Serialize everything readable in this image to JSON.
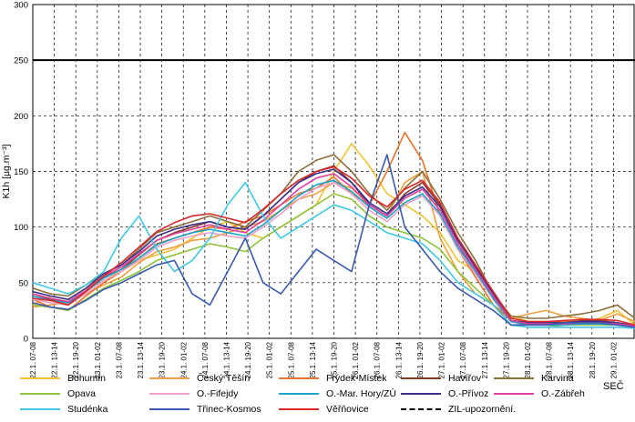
{
  "chart_data": {
    "type": "line",
    "ylabel": "K1h [µg.m⁻³]",
    "ylim": [
      0,
      300
    ],
    "yticks": [
      "0",
      "50",
      "100",
      "150",
      "200",
      "250",
      "300"
    ],
    "threshold": {
      "name": "ZIL-upozornění.",
      "value": 250,
      "color": "#000000"
    },
    "xtick_labels": [
      "22.1. 07-08",
      "22.1. 13-14",
      "22.1. 19-20",
      "23.1. 01-02",
      "23.1. 07-08",
      "23.1. 13-14",
      "23.1. 19-20",
      "24.1. 01-02",
      "24.1. 07-08",
      "24.1. 13-14",
      "24.1. 19-20",
      "25.1. 01-02",
      "25.1. 07-08",
      "25.1. 13-14",
      "25.1. 19-20",
      "26.1. 01-02",
      "26.1. 07-08",
      "26.1. 13-14",
      "26.1. 19-20",
      "27.1. 01-02",
      "27.1. 07-08",
      "27.1. 13-14",
      "27.1. 19-20",
      "28.1. 01-02",
      "28.1. 07-08",
      "28.1. 13-14",
      "28.1. 19-20",
      "29.1. 01-02"
    ],
    "series": [
      {
        "name": "Bohumín",
        "color": "#f2c230",
        "values": [
          30,
          38,
          35,
          45,
          55,
          60,
          70,
          75,
          80,
          90,
          100,
          105,
          95,
          90,
          100,
          110,
          120,
          150,
          175,
          155,
          130,
          120,
          110,
          95,
          70,
          60,
          40,
          20,
          15,
          15,
          12,
          14,
          18,
          25,
          12
        ]
      },
      {
        "name": "Český Těšín",
        "color": "#f0a040",
        "values": [
          28,
          30,
          32,
          40,
          48,
          55,
          68,
          78,
          82,
          88,
          90,
          95,
          100,
          105,
          115,
          125,
          130,
          140,
          135,
          120,
          110,
          140,
          150,
          90,
          60,
          40,
          30,
          18,
          22,
          25,
          20,
          18,
          16,
          22,
          15
        ]
      },
      {
        "name": "Frýdek-Místek",
        "color": "#e8742c",
        "values": [
          35,
          28,
          25,
          38,
          50,
          60,
          72,
          85,
          90,
          95,
          100,
          98,
          105,
          110,
          120,
          130,
          135,
          145,
          130,
          120,
          150,
          185,
          160,
          110,
          80,
          55,
          30,
          16,
          14,
          14,
          15,
          15,
          15,
          14,
          12
        ]
      },
      {
        "name": "Havířov",
        "color": "#8b3a2a",
        "values": [
          40,
          35,
          32,
          42,
          55,
          62,
          75,
          88,
          95,
          100,
          105,
          100,
          98,
          110,
          125,
          140,
          150,
          155,
          140,
          120,
          110,
          130,
          140,
          120,
          85,
          60,
          35,
          16,
          14,
          14,
          14,
          16,
          16,
          14,
          10
        ]
      },
      {
        "name": "Karviná",
        "color": "#8c6e3a",
        "values": [
          45,
          40,
          38,
          48,
          58,
          66,
          80,
          95,
          100,
          105,
          110,
          105,
          100,
          115,
          130,
          150,
          160,
          165,
          150,
          130,
          115,
          135,
          150,
          125,
          95,
          70,
          40,
          20,
          18,
          18,
          20,
          22,
          25,
          30,
          18
        ]
      },
      {
        "name": "Opava",
        "color": "#8fc43a",
        "values": [
          30,
          28,
          25,
          35,
          45,
          52,
          60,
          70,
          75,
          80,
          85,
          82,
          78,
          90,
          100,
          110,
          120,
          130,
          125,
          110,
          100,
          95,
          90,
          80,
          60,
          45,
          30,
          12,
          10,
          10,
          12,
          12,
          12,
          12,
          10
        ]
      },
      {
        "name": "O.-Fifejdy",
        "color": "#f0a0c8",
        "values": [
          35,
          32,
          30,
          40,
          52,
          60,
          70,
          82,
          88,
          92,
          95,
          92,
          90,
          100,
          112,
          125,
          135,
          140,
          130,
          115,
          105,
          120,
          128,
          110,
          80,
          58,
          35,
          15,
          12,
          12,
          12,
          13,
          13,
          12,
          10
        ]
      },
      {
        "name": "O.-Mar. Hory/ZÚ",
        "color": "#1aa3c8",
        "values": [
          38,
          34,
          32,
          42,
          54,
          62,
          72,
          84,
          90,
          95,
          98,
          95,
          92,
          102,
          115,
          128,
          138,
          142,
          132,
          118,
          108,
          122,
          130,
          112,
          82,
          60,
          36,
          15,
          12,
          12,
          12,
          13,
          13,
          12,
          10
        ]
      },
      {
        "name": "O.-Přívoz",
        "color": "#3a2f8c",
        "values": [
          42,
          38,
          35,
          45,
          58,
          66,
          78,
          92,
          98,
          102,
          105,
          100,
          98,
          110,
          125,
          140,
          148,
          152,
          140,
          122,
          112,
          128,
          136,
          118,
          88,
          64,
          40,
          16,
          14,
          14,
          14,
          15,
          15,
          14,
          11
        ]
      },
      {
        "name": "O.-Zábřeh",
        "color": "#e040a0",
        "values": [
          40,
          36,
          33,
          43,
          56,
          64,
          76,
          88,
          94,
          98,
          102,
          98,
          95,
          106,
          120,
          134,
          144,
          148,
          136,
          120,
          110,
          126,
          134,
          115,
          85,
          62,
          38,
          16,
          13,
          13,
          13,
          14,
          14,
          13,
          11
        ]
      },
      {
        "name": "Studénka",
        "color": "#40c8e8",
        "values": [
          50,
          45,
          40,
          48,
          60,
          90,
          110,
          80,
          60,
          70,
          90,
          120,
          140,
          110,
          90,
          100,
          110,
          120,
          115,
          105,
          95,
          90,
          85,
          70,
          50,
          40,
          30,
          12,
          10,
          10,
          10,
          10,
          10,
          10,
          9
        ]
      },
      {
        "name": "Třinec-Kosmos",
        "color": "#3a5ab0",
        "values": [
          32,
          28,
          26,
          34,
          44,
          50,
          58,
          66,
          70,
          40,
          30,
          60,
          90,
          50,
          40,
          60,
          80,
          70,
          60,
          120,
          165,
          100,
          80,
          60,
          45,
          35,
          25,
          12,
          12,
          12,
          14,
          14,
          14,
          12,
          10
        ]
      },
      {
        "name": "Věřňovice",
        "color": "#d82828",
        "values": [
          36,
          34,
          30,
          42,
          56,
          68,
          82,
          96,
          104,
          110,
          112,
          108,
          104,
          116,
          130,
          142,
          150,
          154,
          144,
          128,
          118,
          134,
          142,
          122,
          90,
          66,
          42,
          18,
          15,
          15,
          16,
          17,
          17,
          16,
          12
        ]
      }
    ],
    "legend_extra": "SEČ"
  }
}
